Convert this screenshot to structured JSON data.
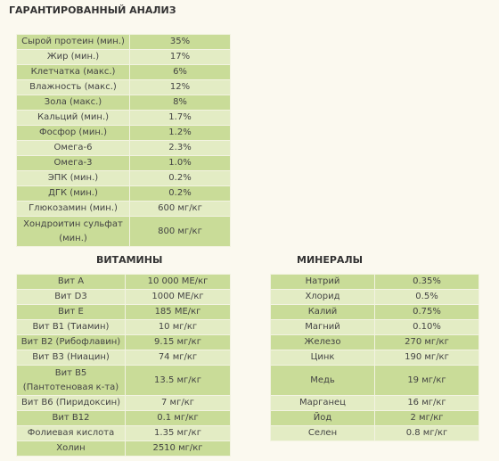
{
  "header": {
    "title": "ГАРАНТИРОВАННЫЙ АНАЛИЗ"
  },
  "analysis": {
    "rows": [
      [
        "Сырой протеин (мин.)",
        "35%"
      ],
      [
        "Жир (мин.)",
        "17%"
      ],
      [
        "Клетчатка (макс.)",
        "6%"
      ],
      [
        "Влажность (макс.)",
        "12%"
      ],
      [
        "Зола (макс.)",
        "8%"
      ],
      [
        "Кальций (мин.)",
        "1.7%"
      ],
      [
        "Фосфор (мин.)",
        "1.2%"
      ],
      [
        "Омега-6",
        "2.3%"
      ],
      [
        "Омега-3",
        "1.0%"
      ],
      [
        "ЭПК (мин.)",
        "0.2%"
      ],
      [
        "ДГК (мин.)",
        "0.2%"
      ],
      [
        "Глюкозамин (мин.)",
        "600 мг/кг"
      ],
      [
        "Хондроитин сульфат (мин.)",
        "800 мг/кг"
      ]
    ]
  },
  "vitamins": {
    "title": "ВИТАМИНЫ",
    "rows": [
      [
        "Вит А",
        "10 000 МЕ/кг"
      ],
      [
        "Вит D3",
        "1000 МЕ/кг"
      ],
      [
        "Вит Е",
        "185 МЕ/кг"
      ],
      [
        "Вит В1 (Тиамин)",
        "10 мг/кг"
      ],
      [
        "Вит В2 (Рибофлавин)",
        "9.15 мг/кг"
      ],
      [
        "Вит В3 (Ниацин)",
        "74 мг/кг"
      ],
      [
        "Вит В5 (Пантотеновая к-та)",
        "13.5 мг/кг"
      ],
      [
        "Вит В6 (Пиридоксин)",
        "7 мг/кг"
      ],
      [
        "Вит В12",
        "0.1 мг/кг"
      ],
      [
        "Фолиевая кислота",
        "1.35 мг/кг"
      ],
      [
        "Холин",
        "2510 мг/кг"
      ]
    ]
  },
  "minerals": {
    "title": "МИНЕРАЛЫ",
    "rows": [
      [
        "Натрий",
        "0.35%"
      ],
      [
        "Хлорид",
        "0.5%"
      ],
      [
        "Калий",
        "0.75%"
      ],
      [
        "Магний",
        "0.10%"
      ],
      [
        "Железо",
        "270 мг/кг"
      ],
      [
        "Цинк",
        "190 мг/кг"
      ],
      [
        "Медь",
        "19 мг/кг"
      ],
      [
        "Марганец",
        "16 мг/кг"
      ],
      [
        "Йод",
        "2 мг/кг"
      ],
      [
        "Селен",
        "0.8 мг/кг"
      ]
    ]
  }
}
